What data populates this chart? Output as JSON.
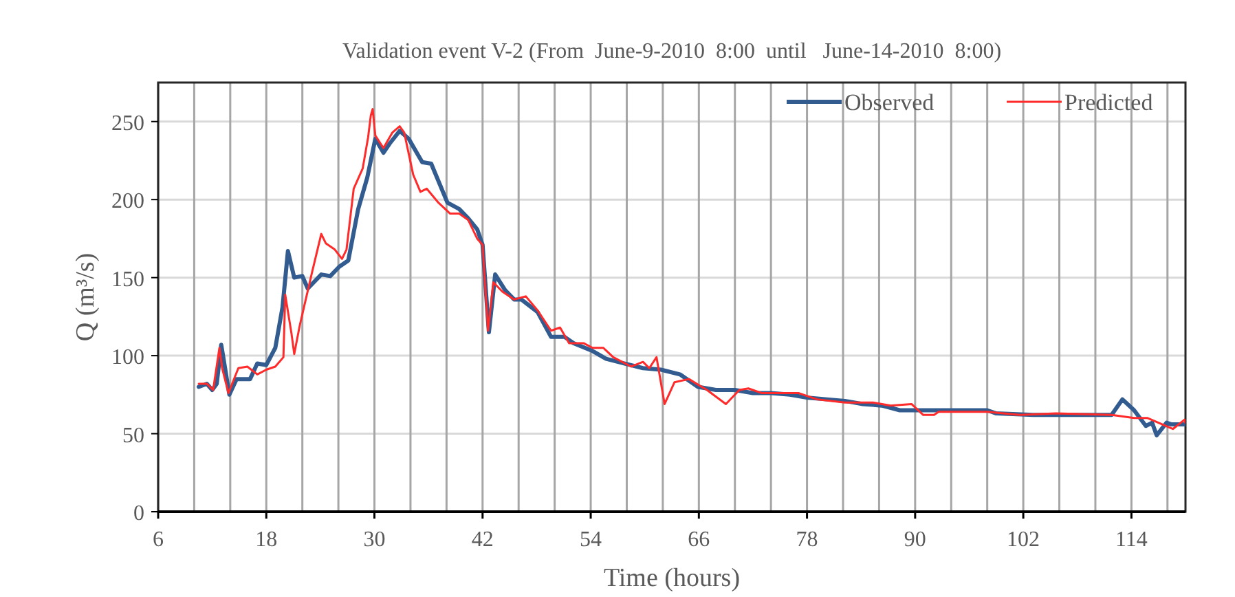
{
  "chart_data": {
    "type": "line",
    "title": "Validation event V-2 (From  June-9-2010  8:00  until   June-14-2010  8:00)",
    "xlabel": "Time (hours)",
    "ylabel": "Q (m³/s)",
    "xlim": [
      6,
      120
    ],
    "ylim": [
      0,
      275
    ],
    "xticks": [
      6,
      {
        "value": 10,
        "label": null
      },
      {
        "value": 14,
        "label": null
      },
      18,
      {
        "value": 22,
        "label": null
      },
      {
        "value": 26,
        "label": null
      },
      30,
      {
        "value": 34,
        "label": null
      },
      {
        "value": 38,
        "label": null
      },
      42,
      {
        "value": 46,
        "label": null
      },
      {
        "value": 50,
        "label": null
      },
      54,
      {
        "value": 58,
        "label": null
      },
      {
        "value": 62,
        "label": null
      },
      66,
      {
        "value": 70,
        "label": null
      },
      {
        "value": 74,
        "label": null
      },
      78,
      {
        "value": 82,
        "label": null
      },
      {
        "value": 86,
        "label": null
      },
      90,
      {
        "value": 94,
        "label": null
      },
      {
        "value": 98,
        "label": null
      },
      102,
      {
        "value": 106,
        "label": null
      },
      {
        "value": 110,
        "label": null
      },
      114,
      {
        "value": 118,
        "label": null
      }
    ],
    "yticks": [
      0,
      50,
      100,
      150,
      200,
      250
    ],
    "grid": true,
    "legend": "top right",
    "series": [
      {
        "name": "Observed",
        "color": "#325c90",
        "x": [
          10.5,
          11.4,
          12,
          12.5,
          13,
          13.9,
          14.7,
          16.2,
          17,
          18,
          19,
          19.8,
          20.4,
          21.1,
          22,
          22.6,
          24.1,
          25.1,
          26.1,
          27.1,
          28.2,
          29.2,
          30.1,
          31,
          31.7,
          32.8,
          33.8,
          35.3,
          36.3,
          38.1,
          39.4,
          40.4,
          41.4,
          42,
          42.7,
          43.4,
          44.5,
          45.5,
          46.3,
          48.1,
          49.6,
          51.1,
          52.1,
          54.2,
          55.7,
          57.7,
          59.8,
          61.8,
          63.9,
          65.9,
          67.9,
          70,
          72,
          74,
          76.1,
          78.1,
          80.2,
          82.2,
          84.2,
          86.3,
          88.3,
          90.4,
          92.4,
          98,
          99,
          103.1,
          106.2,
          111.8,
          113,
          114.3,
          115.6,
          116.3,
          116.8,
          117.9,
          118.4,
          120
        ],
        "values": [
          80,
          82,
          78,
          82,
          107,
          75,
          85,
          85,
          95,
          94,
          105,
          131,
          167,
          150,
          151,
          143,
          152,
          151,
          157,
          161,
          194,
          214,
          239,
          230,
          236,
          244,
          239,
          224,
          223,
          198,
          194,
          188,
          181,
          171,
          115,
          152,
          142,
          136,
          136,
          128,
          112,
          112,
          108,
          103,
          98,
          95,
          92,
          91,
          88,
          80,
          78,
          78,
          76,
          76,
          75,
          73,
          72,
          71,
          69,
          68,
          65,
          65,
          65,
          65,
          63,
          62,
          62,
          62,
          72,
          65,
          55,
          57,
          49,
          57,
          56,
          56
        ]
      },
      {
        "name": "Predicted",
        "color": "#ff2a2a",
        "x": [
          10.5,
          11.4,
          12.1,
          12.8,
          13.1,
          13.8,
          14.9,
          15.9,
          17,
          18,
          19,
          19.9,
          20.1,
          20.8,
          21.1,
          21.7,
          22.3,
          23.1,
          24.1,
          24.6,
          25.6,
          26.4,
          26.9,
          27.7,
          28.7,
          29.3,
          29.6,
          29.8,
          30.1,
          31,
          32,
          32.8,
          33.3,
          34.3,
          35.1,
          35.8,
          37.1,
          38.4,
          39.4,
          40.4,
          41.4,
          42,
          42.6,
          43.2,
          44.2,
          45.5,
          46.8,
          48.1,
          49.6,
          50.6,
          51.6,
          53.2,
          54.2,
          55.4,
          56.5,
          58.5,
          59.8,
          60.5,
          61.3,
          62.2,
          63.3,
          64.9,
          66.9,
          69,
          70.5,
          71.5,
          73,
          75.1,
          77.1,
          79.1,
          82.2,
          85.3,
          87.3,
          89.6,
          90.9,
          92.1,
          92.6,
          98,
          101.6,
          105.6,
          111.8,
          114.3,
          115.8,
          117.4,
          118.6,
          119.9,
          120
        ],
        "values": [
          82,
          82,
          78,
          105,
          92,
          76,
          92,
          93,
          88,
          91,
          93,
          99,
          139,
          114,
          101,
          119,
          134,
          154,
          178,
          172,
          168,
          162,
          168,
          207,
          220,
          240,
          254,
          258,
          241,
          233,
          243,
          247,
          243,
          216,
          205,
          207,
          198,
          191,
          191,
          187,
          175,
          171,
          116,
          147,
          141,
          136,
          138,
          129,
          116,
          118,
          108,
          108,
          105,
          105,
          99,
          93,
          96,
          92,
          99,
          69,
          83,
          85,
          78,
          69,
          78,
          79,
          76,
          76,
          76,
          72,
          70,
          70,
          68,
          69,
          62,
          62,
          64,
          64,
          62,
          63,
          62,
          60,
          60,
          56,
          53,
          59,
          57
        ]
      }
    ]
  }
}
